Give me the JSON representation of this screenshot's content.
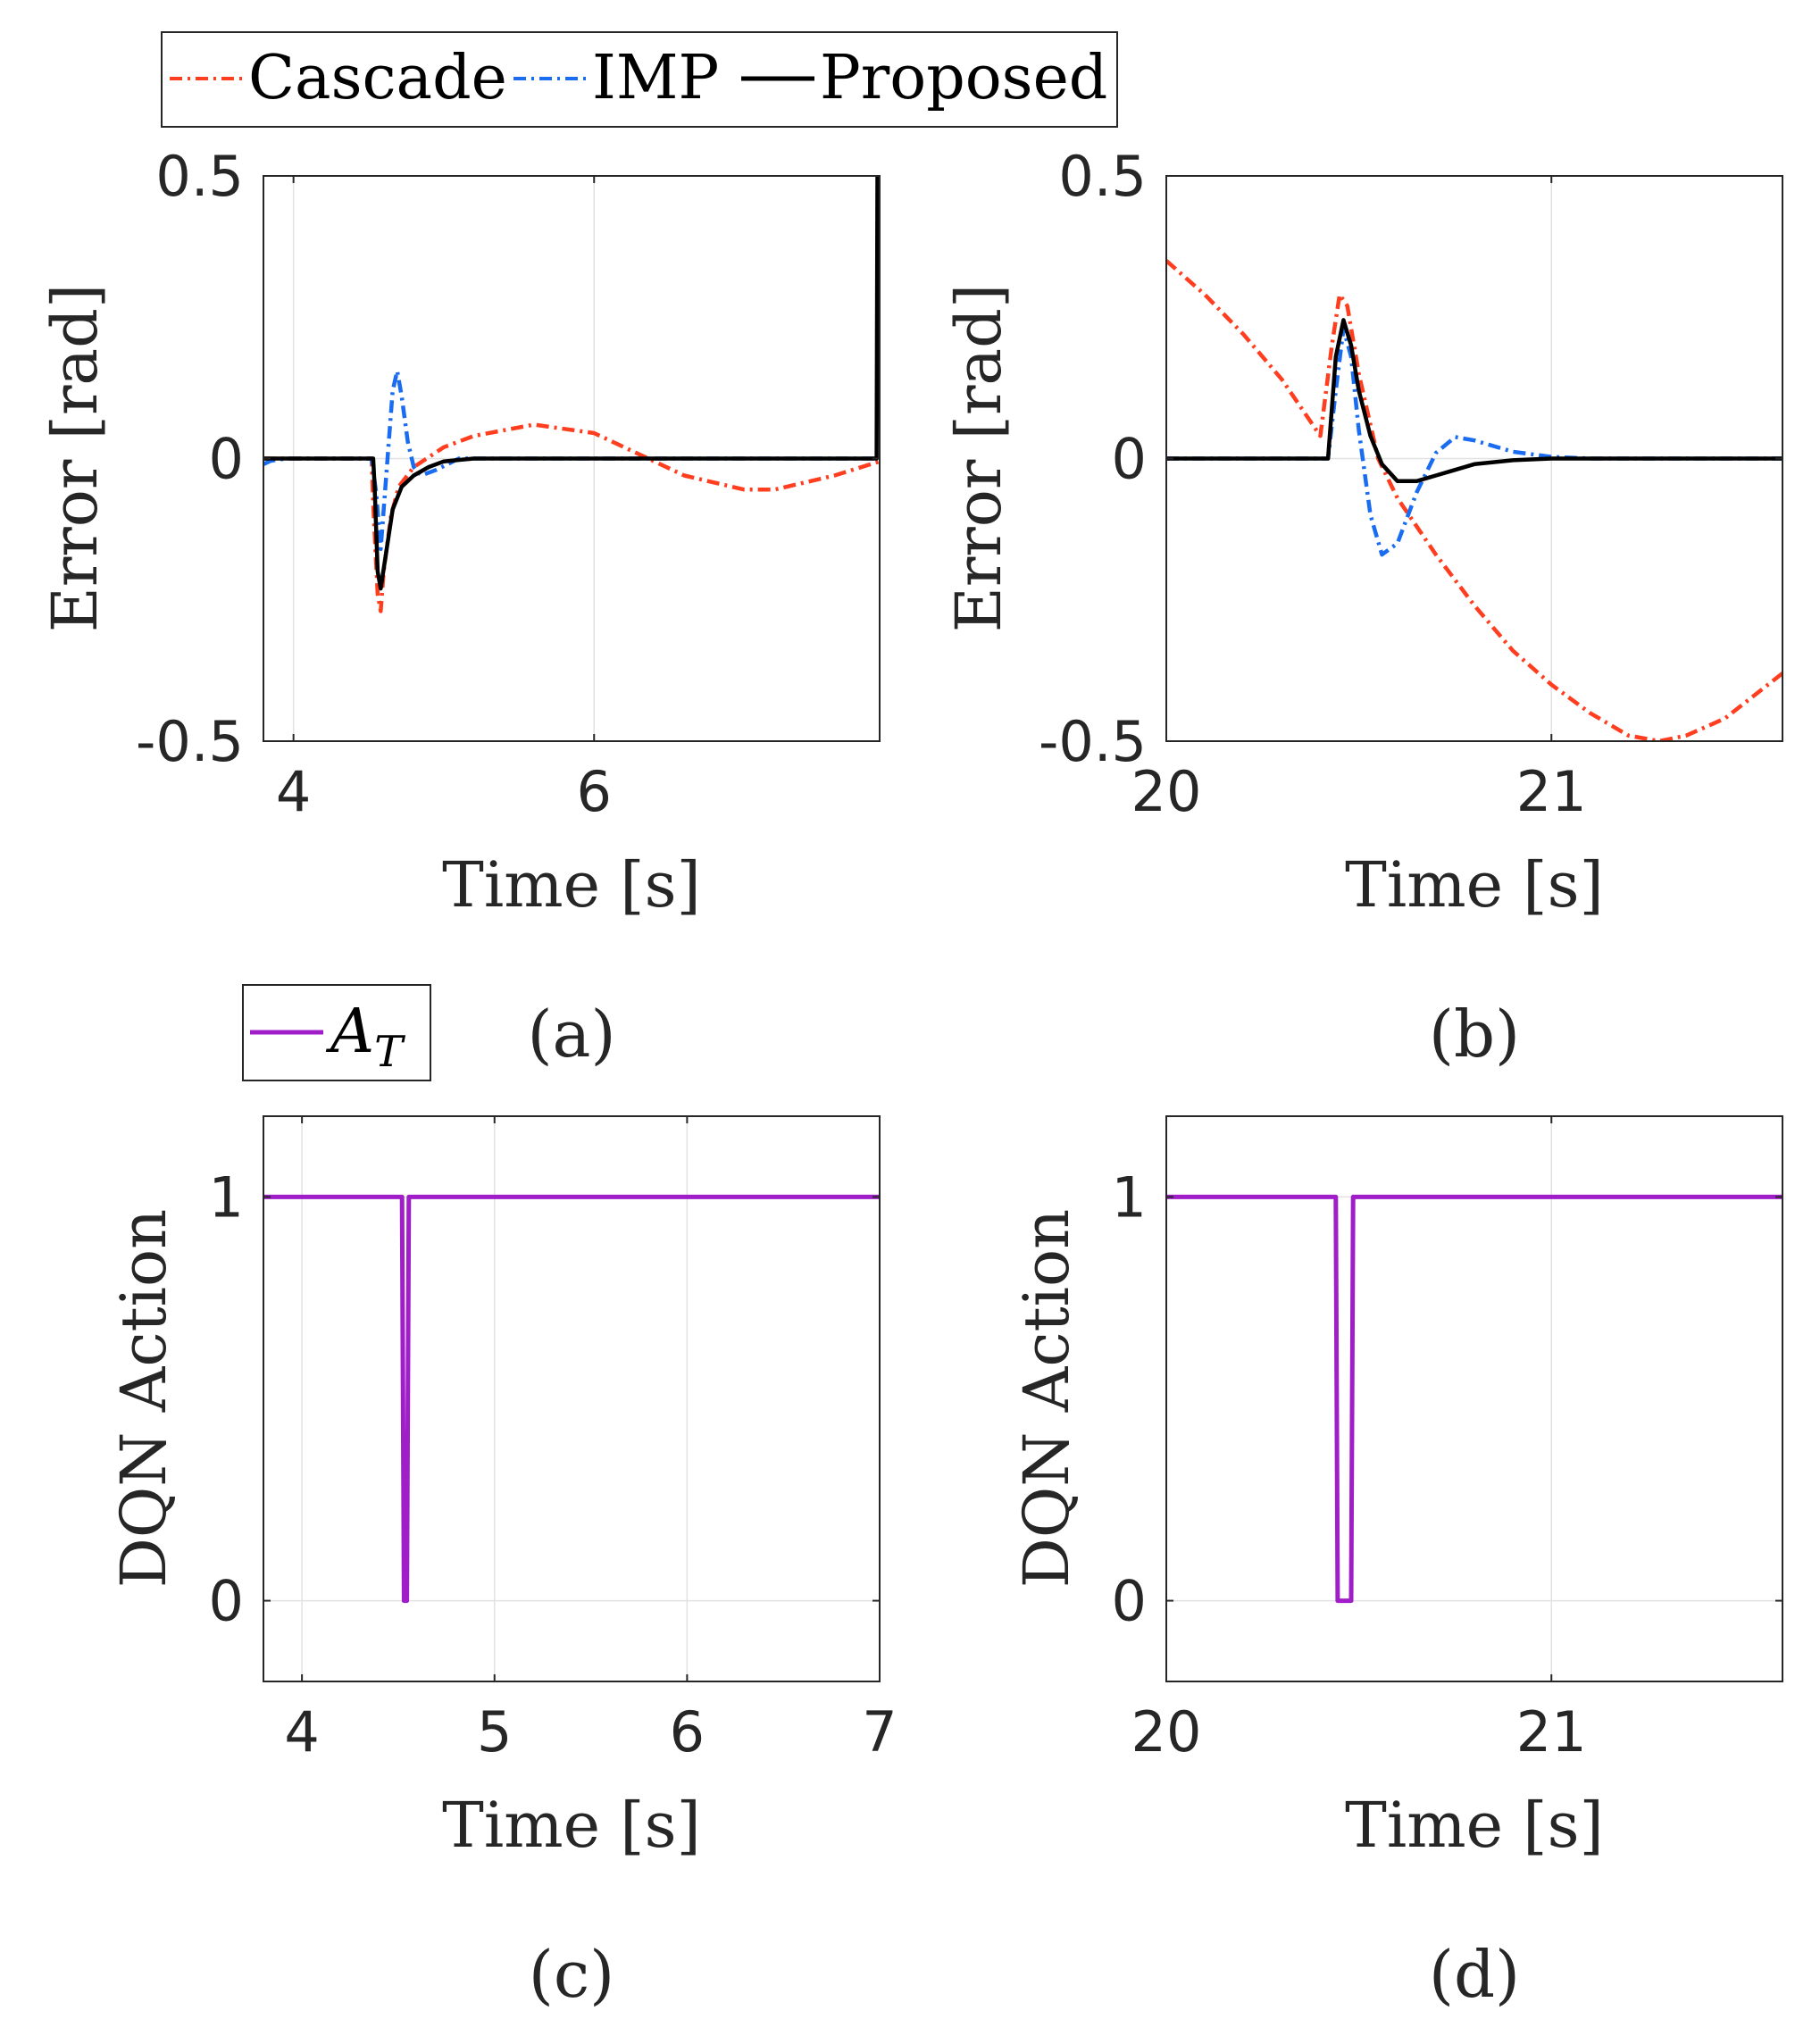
{
  "colors": {
    "cascade": "#ff3d1f",
    "imp": "#1a6cf0",
    "proposed": "#000000",
    "at": "#a01ec8",
    "grid": "#e2e2e2",
    "axis": "#262626"
  },
  "legend_top": {
    "cascade": "Cascade",
    "imp": "IMP",
    "proposed": "Proposed"
  },
  "legend_bottom": {
    "at_main": "A",
    "at_sub": "T"
  },
  "chart_data": [
    {
      "type": "line",
      "panel": "(a)",
      "xlabel": "Time [s]",
      "ylabel": "Error [rad]",
      "xlim": [
        3.8,
        7.9
      ],
      "ylim": [
        -0.5,
        0.5
      ],
      "xticks": [
        4,
        6
      ],
      "xtick_labels": [
        "4",
        "6"
      ],
      "yticks": [
        -0.5,
        0,
        0.5
      ],
      "ytick_labels": [
        "-0.5",
        "0",
        "0.5"
      ],
      "grid": true,
      "series": [
        {
          "name": "Cascade",
          "style": "dashdot",
          "color_key": "cascade",
          "x": [
            3.8,
            4.52,
            4.53,
            4.56,
            4.58,
            4.6,
            4.65,
            4.7,
            4.8,
            5.0,
            5.2,
            5.6,
            6.0,
            6.2,
            6.6,
            7.0,
            7.2,
            7.6,
            7.9
          ],
          "y": [
            0,
            0,
            -0.08,
            -0.24,
            -0.27,
            -0.2,
            -0.1,
            -0.05,
            -0.015,
            0.02,
            0.04,
            0.06,
            0.045,
            0.02,
            -0.03,
            -0.055,
            -0.055,
            -0.03,
            -0.005
          ]
        },
        {
          "name": "IMP",
          "style": "dashdot",
          "color_key": "imp",
          "x": [
            3.8,
            3.85,
            3.95,
            4.52,
            4.55,
            4.58,
            4.62,
            4.66,
            4.69,
            4.72,
            4.76,
            4.8,
            4.85,
            4.95,
            5.1,
            7.9
          ],
          "y": [
            -0.01,
            -0.004,
            0,
            0,
            -0.06,
            -0.16,
            -0.02,
            0.12,
            0.155,
            0.11,
            0.03,
            -0.015,
            -0.03,
            -0.02,
            0,
            0
          ]
        },
        {
          "name": "Proposed",
          "style": "solid",
          "color_key": "proposed",
          "x": [
            3.8,
            4.53,
            4.54,
            4.56,
            4.58,
            4.62,
            4.66,
            4.72,
            4.8,
            4.9,
            5.0,
            5.2,
            7.88,
            7.885,
            7.9
          ],
          "y": [
            0,
            0,
            -0.05,
            -0.2,
            -0.23,
            -0.16,
            -0.09,
            -0.05,
            -0.03,
            -0.015,
            -0.005,
            0,
            0,
            0.5,
            0.5
          ]
        }
      ]
    },
    {
      "type": "line",
      "panel": "(b)",
      "xlabel": "Time [s]",
      "ylabel": "Error [rad]",
      "xlim": [
        20,
        21.6
      ],
      "ylim": [
        -0.5,
        0.5
      ],
      "xticks": [
        20,
        21
      ],
      "xtick_labels": [
        "20",
        "21"
      ],
      "yticks": [
        -0.5,
        0,
        0.5
      ],
      "ytick_labels": [
        "-0.5",
        "0",
        "0.5"
      ],
      "grid": true,
      "series": [
        {
          "name": "Cascade",
          "style": "dashdot",
          "color_key": "cascade",
          "x": [
            20.0,
            20.1,
            20.2,
            20.3,
            20.4,
            20.43,
            20.45,
            20.47,
            20.5,
            20.55,
            20.6,
            20.7,
            20.8,
            20.9,
            21.0,
            21.1,
            21.2,
            21.28,
            21.35,
            21.45,
            21.6
          ],
          "y": [
            0.35,
            0.29,
            0.22,
            0.14,
            0.04,
            0.2,
            0.29,
            0.27,
            0.15,
            0.0,
            -0.07,
            -0.17,
            -0.26,
            -0.34,
            -0.4,
            -0.45,
            -0.49,
            -0.5,
            -0.49,
            -0.46,
            -0.38
          ]
        },
        {
          "name": "IMP",
          "style": "dashdot",
          "color_key": "imp",
          "x": [
            20.0,
            20.42,
            20.44,
            20.46,
            20.48,
            20.5,
            20.53,
            20.56,
            20.6,
            20.65,
            20.7,
            20.75,
            20.8,
            20.9,
            21.0,
            21.1,
            21.6
          ],
          "y": [
            0,
            0,
            0.12,
            0.23,
            0.18,
            0.05,
            -0.1,
            -0.17,
            -0.15,
            -0.06,
            0.01,
            0.038,
            0.032,
            0.012,
            0.003,
            0,
            0
          ]
        },
        {
          "name": "Proposed",
          "style": "solid",
          "color_key": "proposed",
          "x": [
            20.0,
            20.42,
            20.44,
            20.46,
            20.48,
            20.5,
            20.53,
            20.56,
            20.6,
            20.65,
            20.7,
            20.75,
            20.8,
            20.9,
            21.0,
            21.6
          ],
          "y": [
            0,
            0,
            0.18,
            0.245,
            0.2,
            0.12,
            0.04,
            -0.01,
            -0.04,
            -0.04,
            -0.03,
            -0.02,
            -0.01,
            -0.003,
            0,
            0
          ]
        }
      ]
    },
    {
      "type": "line",
      "panel": "(c)",
      "xlabel": "Time [s]",
      "ylabel": "DQN Action",
      "xlim": [
        3.8,
        7.0
      ],
      "ylim": [
        -0.2,
        1.2
      ],
      "xticks": [
        4,
        5,
        6,
        7
      ],
      "xtick_labels": [
        "4",
        "5",
        "6",
        "7"
      ],
      "yticks": [
        0,
        1
      ],
      "ytick_labels": [
        "0",
        "1"
      ],
      "grid": true,
      "series": [
        {
          "name": "A_T",
          "style": "solid",
          "color_key": "at",
          "x": [
            3.8,
            4.52,
            4.53,
            4.545,
            4.555,
            7.0
          ],
          "y": [
            1,
            1,
            0,
            0,
            1,
            1
          ]
        }
      ]
    },
    {
      "type": "line",
      "panel": "(d)",
      "xlabel": "Time [s]",
      "ylabel": "DQN Action",
      "xlim": [
        20,
        21.6
      ],
      "ylim": [
        -0.2,
        1.2
      ],
      "xticks": [
        20,
        21
      ],
      "xtick_labels": [
        "20",
        "21"
      ],
      "yticks": [
        0,
        1
      ],
      "ytick_labels": [
        "0",
        "1"
      ],
      "grid": true,
      "series": [
        {
          "name": "A_T",
          "style": "solid",
          "color_key": "at",
          "x": [
            20.0,
            20.44,
            20.445,
            20.48,
            20.485,
            21.6
          ],
          "y": [
            1,
            1,
            0,
            0,
            1,
            1
          ]
        }
      ]
    }
  ]
}
